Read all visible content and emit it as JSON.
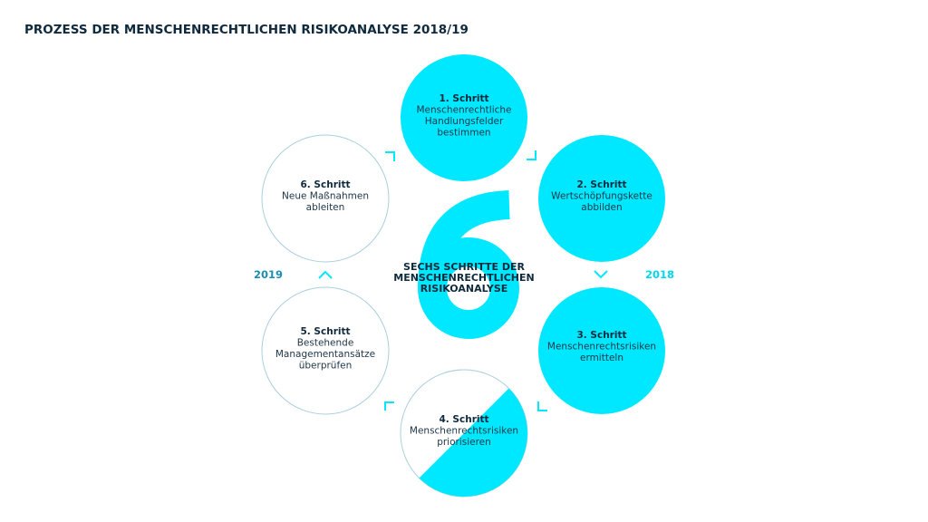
{
  "title": "PROZESS DER MENSCHENRECHTLICHEN RISIKOANALYSE 2018/19",
  "center": {
    "big_number": "6",
    "lines": [
      "SECHS SCHRITTE DER",
      "MENSCHENRECHTLICHEN",
      "RISIKOANALYSE"
    ]
  },
  "years": {
    "left": "2019",
    "right": "2018"
  },
  "colors": {
    "accent": "#00e8ff",
    "text": "#0f2a3d",
    "outline": "#a9cfdc",
    "year_left": "#1a8fb0",
    "year_right": "#00d8f0"
  },
  "steps": [
    {
      "label": "1. Schritt",
      "lines": [
        "Menschenrechtliche",
        "Handlungsfelder",
        "bestimmen"
      ],
      "fill": "full"
    },
    {
      "label": "2. Schritt",
      "lines": [
        "Wertschöpfungskette",
        "abbilden"
      ],
      "fill": "full"
    },
    {
      "label": "3. Schritt",
      "lines": [
        "Menschenrechtsrisiken",
        "ermitteln"
      ],
      "fill": "full"
    },
    {
      "label": "4. Schritt",
      "lines": [
        "Menschenrechtsrisiken",
        "priorisieren"
      ],
      "fill": "half"
    },
    {
      "label": "5. Schritt",
      "lines": [
        "Bestehende",
        "Managementansätze",
        "überprüfen"
      ],
      "fill": "none"
    },
    {
      "label": "6. Schritt",
      "lines": [
        "Neue Maßnahmen",
        "ableiten"
      ],
      "fill": "none"
    }
  ]
}
